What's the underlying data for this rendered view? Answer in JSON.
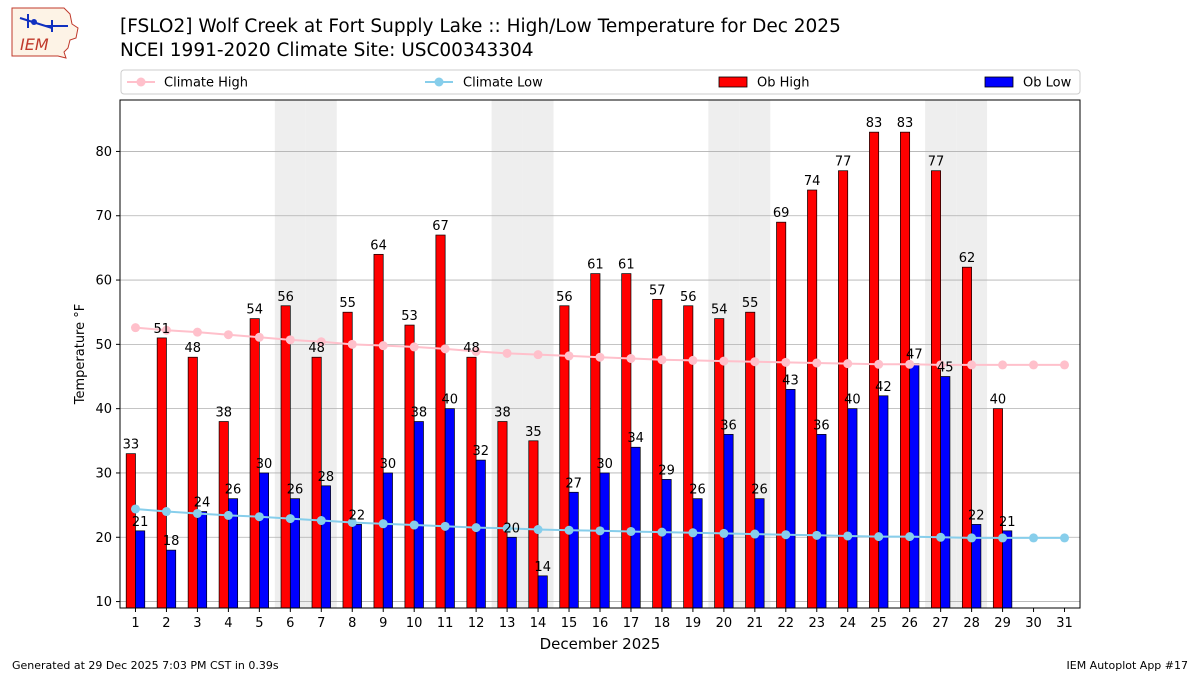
{
  "logo_text": "IEM",
  "title_line1": "[FSLO2] Wolf Creek at Fort Supply Lake :: High/Low Temperature for Dec 2025",
  "title_line2": "NCEI 1991-2020 Climate Site: USC00343304",
  "footer_left": "Generated at 29 Dec 2025 7:03 PM CST in 0.39s",
  "footer_right": "IEM Autoplot App #17",
  "chart_data": {
    "type": "bar",
    "xlabel": "December 2025",
    "ylabel": "Temperature °F",
    "ylim": [
      9,
      88
    ],
    "xlim": [
      0.5,
      31.5
    ],
    "yticks": [
      10,
      20,
      30,
      40,
      50,
      60,
      70,
      80
    ],
    "categories": [
      1,
      2,
      3,
      4,
      5,
      6,
      7,
      8,
      9,
      10,
      11,
      12,
      13,
      14,
      15,
      16,
      17,
      18,
      19,
      20,
      21,
      22,
      23,
      24,
      25,
      26,
      27,
      28,
      29,
      30,
      31
    ],
    "grid": "horizontal",
    "legend_position": "top",
    "weekend_shading_days": [
      6,
      7,
      13,
      14,
      20,
      21,
      27,
      28
    ],
    "colors": {
      "ob_high": "#ff0000",
      "ob_low": "#0000ff",
      "climate_high": "#ffc0cb",
      "climate_low": "#87ceeb",
      "weekend": "#eeeeee",
      "grid": "#b0b0b0"
    },
    "series": [
      {
        "name": "Climate High",
        "kind": "line",
        "values": [
          52.6,
          52.2,
          51.9,
          51.5,
          51.1,
          50.7,
          50.4,
          50.0,
          49.8,
          49.6,
          49.3,
          48.9,
          48.6,
          48.4,
          48.2,
          48.0,
          47.8,
          47.6,
          47.5,
          47.4,
          47.3,
          47.2,
          47.1,
          47.0,
          46.9,
          46.9,
          46.8,
          46.8,
          46.8,
          46.8,
          46.8
        ]
      },
      {
        "name": "Climate Low",
        "kind": "line",
        "values": [
          24.4,
          24.0,
          23.7,
          23.4,
          23.2,
          22.9,
          22.6,
          22.3,
          22.1,
          21.9,
          21.7,
          21.5,
          21.4,
          21.2,
          21.1,
          21.0,
          20.9,
          20.8,
          20.7,
          20.6,
          20.5,
          20.4,
          20.3,
          20.2,
          20.1,
          20.1,
          20.0,
          19.9,
          19.9,
          19.9,
          19.9
        ]
      },
      {
        "name": "Ob High",
        "kind": "bar",
        "values": [
          33,
          51,
          48,
          38,
          54,
          56,
          48,
          55,
          64,
          53,
          67,
          48,
          38,
          35,
          56,
          61,
          61,
          57,
          56,
          54,
          55,
          69,
          74,
          77,
          83,
          83,
          77,
          62,
          40,
          null,
          null
        ]
      },
      {
        "name": "Ob Low",
        "kind": "bar",
        "values": [
          21,
          18,
          24,
          26,
          30,
          26,
          28,
          22,
          30,
          38,
          40,
          32,
          20,
          14,
          27,
          30,
          34,
          29,
          26,
          36,
          26,
          43,
          36,
          40,
          42,
          47,
          45,
          22,
          21,
          null,
          null
        ]
      }
    ]
  }
}
